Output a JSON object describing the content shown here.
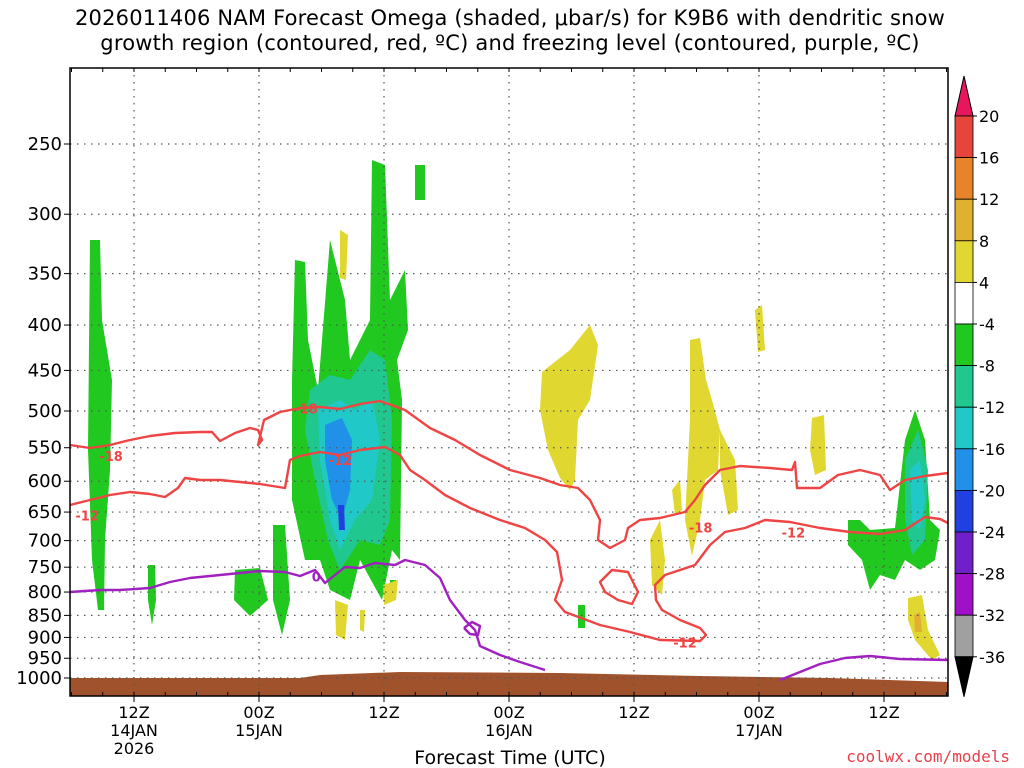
{
  "chart_data": {
    "type": "heatmap",
    "title_line1": "2026011406 NAM Forecast Omega (shaded, μbar/s) for K9B6 with dendritic snow",
    "title_line2": "growth region (contoured, red, ºC) and freezing level (contoured, purple, ºC)",
    "xlabel": "Forecast Time (UTC)",
    "x_ticks": [
      {
        "hour": 6,
        "line1": "12Z",
        "line2": "14JAN",
        "line3": "2026"
      },
      {
        "hour": 18,
        "line1": "00Z",
        "line2": "15JAN",
        "line3": ""
      },
      {
        "hour": 30,
        "line1": "12Z",
        "line2": "",
        "line3": ""
      },
      {
        "hour": 42,
        "line1": "00Z",
        "line2": "16JAN",
        "line3": ""
      },
      {
        "hour": 54,
        "line1": "12Z",
        "line2": "",
        "line3": ""
      },
      {
        "hour": 66,
        "line1": "00Z",
        "line2": "17JAN",
        "line3": ""
      },
      {
        "hour": 78,
        "line1": "12Z",
        "line2": "",
        "line3": ""
      }
    ],
    "xlim": [
      0,
      84
    ],
    "y_ticks": [
      250,
      300,
      350,
      400,
      450,
      500,
      550,
      600,
      650,
      700,
      750,
      800,
      850,
      900,
      950,
      1000
    ],
    "ylim": [
      1030,
      200
    ],
    "y_scale": "log-pressure",
    "grid": true,
    "colorbar": {
      "labels": [
        "20",
        "16",
        "12",
        "8",
        "4",
        "-4",
        "-8",
        "-12",
        "-16",
        "-20",
        "-24",
        "-28",
        "-32",
        "-36"
      ],
      "colors": [
        "#e8175d",
        "#e8453a",
        "#e8832a",
        "#e0b030",
        "#e0d830",
        "#ffffff",
        "#20c820",
        "#20c890",
        "#20c8c8",
        "#2090e8",
        "#2040e0",
        "#7020c8",
        "#a010c8",
        "#a0a0a0",
        "#000000"
      ]
    },
    "contour_labels": [
      {
        "text": "-18",
        "hour": 22.5,
        "p": 497
      },
      {
        "text": "-18",
        "hour": 3.8,
        "p": 562
      },
      {
        "text": "-12",
        "hour": 25.8,
        "p": 568
      },
      {
        "text": "-12",
        "hour": 1.5,
        "p": 656
      },
      {
        "text": "-18",
        "hour": 60.4,
        "p": 677
      },
      {
        "text": "-12",
        "hour": 69.3,
        "p": 685
      },
      {
        "text": "-12",
        "hour": 58.9,
        "p": 912
      },
      {
        "text": "0",
        "hour": 23.5,
        "p": 768
      }
    ],
    "freezing_level_color": "#a020c0",
    "dgz_color": "#ee4444",
    "ground_color": "#a0522d"
  },
  "credit": "coolwx.com/models"
}
